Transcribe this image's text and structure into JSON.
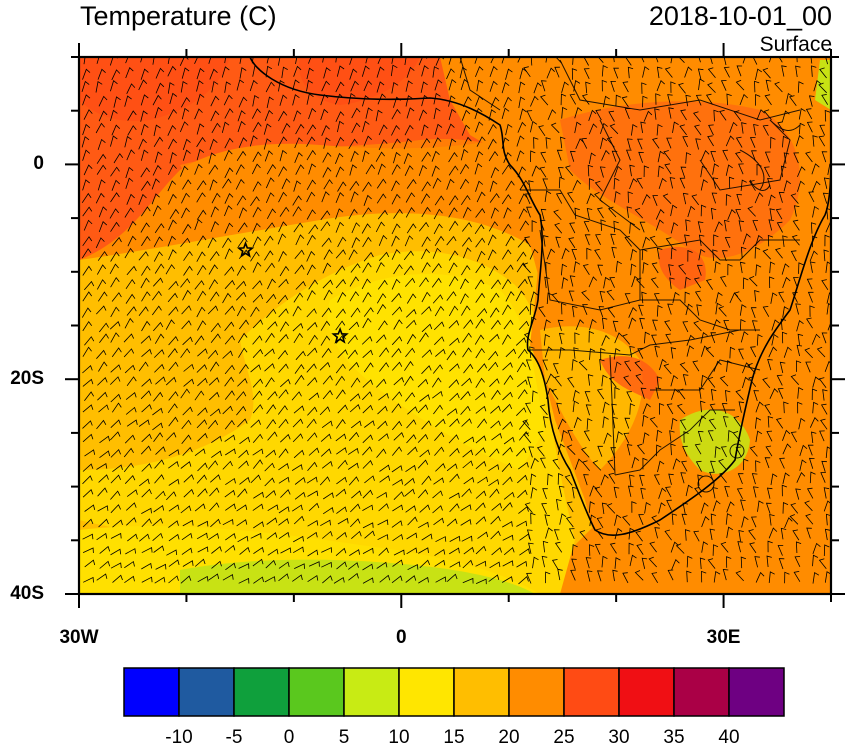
{
  "header": {
    "title": "Temperature (C)",
    "valid_time": "2018-10-01_00",
    "level": "Surface"
  },
  "axes": {
    "y_ticks": [
      {
        "label": "0",
        "lat": 0
      },
      {
        "label": "20S",
        "lat": -20
      },
      {
        "label": "40S",
        "lat": -40
      }
    ],
    "x_ticks": [
      {
        "label": "30W",
        "lon": -30
      },
      {
        "label": "0",
        "lon": 0
      },
      {
        "label": "30E",
        "lon": 30
      }
    ],
    "lon_range": [
      -30,
      40
    ],
    "lat_range": [
      -40,
      10
    ]
  },
  "colorbar": {
    "labels": [
      "-10",
      "-5",
      "0",
      "5",
      "10",
      "15",
      "20",
      "25",
      "30",
      "35",
      "40"
    ],
    "colors": [
      "#0000ff",
      "#1f5aa0",
      "#0fa03c",
      "#5ac81e",
      "#c8eb14",
      "#ffe600",
      "#ffbe00",
      "#ff8c00",
      "#ff4b14",
      "#f00f14",
      "#aa0046",
      "#6e0082"
    ]
  },
  "markers": [
    {
      "name": "station-star",
      "lon": -14.5,
      "lat": -8
    },
    {
      "name": "station-star",
      "lon": -5.7,
      "lat": -16
    }
  ]
}
